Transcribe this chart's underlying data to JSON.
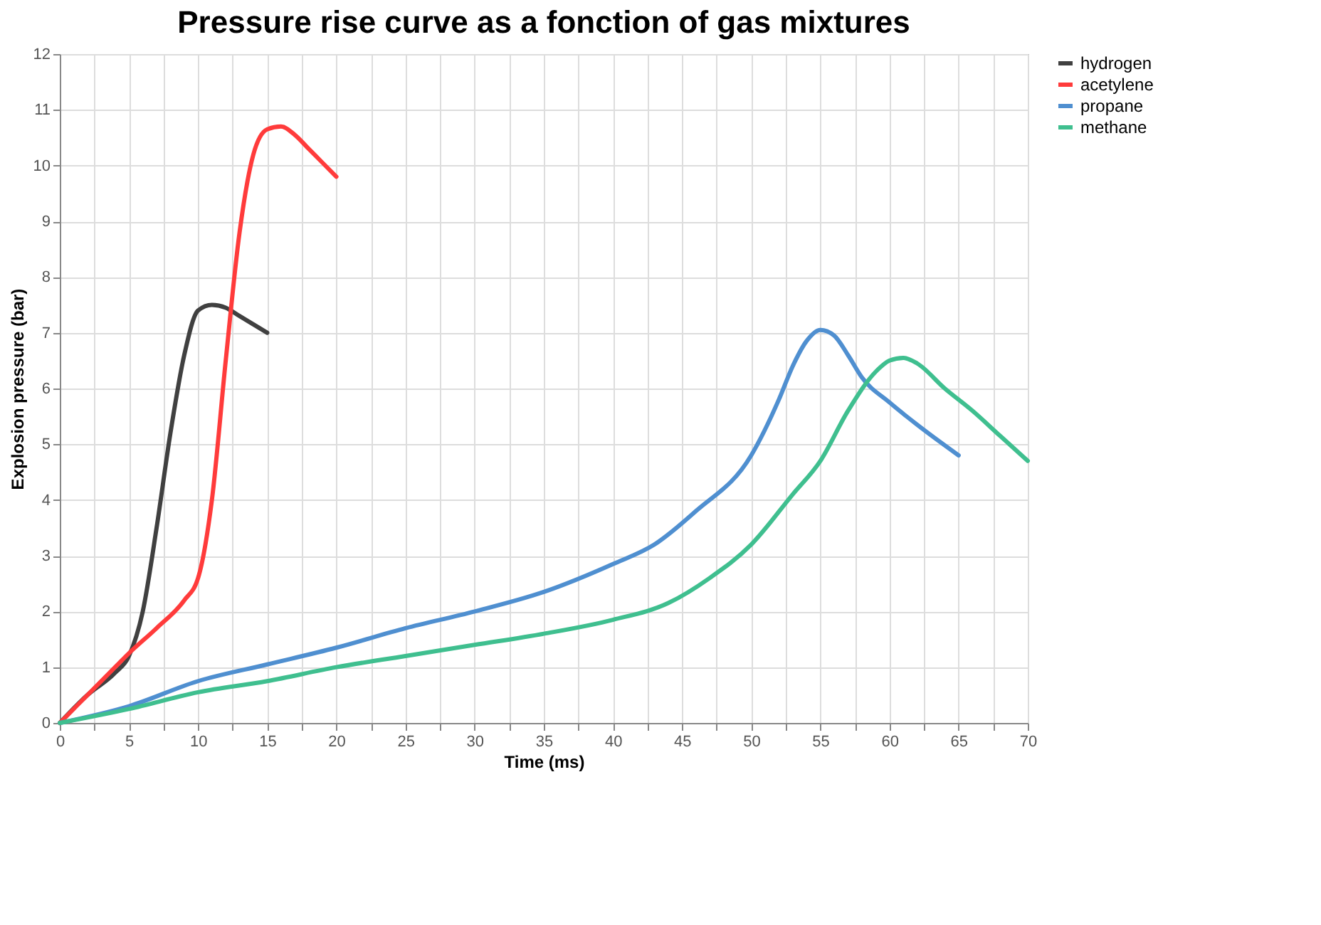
{
  "chart_data": {
    "type": "line",
    "title": "Pressure rise curve as a fonction of gas mixtures",
    "xlabel": "Time (ms)",
    "ylabel": "Explosion pressure (bar)",
    "xlim": [
      0,
      70
    ],
    "ylim": [
      0,
      12
    ],
    "xticks": [
      0,
      {
        "value": 2.5,
        "label": null
      },
      5,
      {
        "value": 7.5,
        "label": null
      },
      10,
      {
        "value": 12.5,
        "label": null
      },
      15,
      {
        "value": 17.5,
        "label": null
      },
      20,
      {
        "value": 22.5,
        "label": null
      },
      25,
      {
        "value": 27.5,
        "label": null
      },
      30,
      {
        "value": 32.5,
        "label": null
      },
      35,
      {
        "value": 37.5,
        "label": null
      },
      40,
      {
        "value": 42.5,
        "label": null
      },
      45,
      {
        "value": 47.5,
        "label": null
      },
      50,
      {
        "value": 52.5,
        "label": null
      },
      55,
      {
        "value": 57.5,
        "label": null
      },
      60,
      {
        "value": 62.5,
        "label": null
      },
      65,
      {
        "value": 67.5,
        "label": null
      },
      70
    ],
    "yticks": [
      0,
      1,
      2,
      3,
      4,
      5,
      6,
      7,
      8,
      9,
      10,
      11,
      12
    ],
    "grid": true,
    "legend": "right",
    "marker": "none",
    "line_style": "solid",
    "series": [
      {
        "name": "hydrogen",
        "color": "#404040",
        "x": [
          0,
          2,
          4,
          5,
          6,
          7,
          8,
          9,
          10,
          11,
          12,
          13,
          14,
          15
        ],
        "values": [
          0,
          0.5,
          0.9,
          1.2,
          2,
          3.5,
          5.2,
          6.6,
          7.4,
          7.5,
          7.45,
          7.3,
          7.15,
          7.0
        ]
      },
      {
        "name": "acetylene",
        "color": "#ff3b3b",
        "x": [
          0,
          2,
          4,
          5,
          7,
          9,
          10,
          11,
          12,
          13,
          14,
          15,
          16,
          17,
          18,
          19,
          20
        ],
        "values": [
          0,
          0.5,
          1.0,
          1.25,
          1.7,
          2.2,
          2.6,
          4.0,
          6.5,
          8.8,
          10.2,
          10.65,
          10.7,
          10.55,
          10.3,
          10.05,
          9.8
        ]
      },
      {
        "name": "propane",
        "color": "#4f8fd0",
        "x": [
          0,
          5,
          10,
          15,
          20,
          25,
          30,
          35,
          40,
          43,
          46,
          50,
          52,
          53,
          54,
          55,
          56,
          57,
          58,
          60,
          62,
          65
        ],
        "values": [
          0,
          0.3,
          0.75,
          1.05,
          1.35,
          1.7,
          2.0,
          2.35,
          2.85,
          3.2,
          3.8,
          4.8,
          5.8,
          6.4,
          6.85,
          7.05,
          6.95,
          6.6,
          6.2,
          5.75,
          5.35,
          4.8
        ]
      },
      {
        "name": "methane",
        "color": "#3fbf8f",
        "x": [
          0,
          5,
          10,
          15,
          20,
          25,
          30,
          35,
          40,
          44,
          47,
          50,
          53,
          55,
          57,
          59,
          60,
          61,
          62,
          64,
          66,
          68,
          70
        ],
        "values": [
          0,
          0.25,
          0.55,
          0.75,
          1.0,
          1.2,
          1.4,
          1.6,
          1.85,
          2.15,
          2.6,
          3.2,
          4.1,
          4.7,
          5.6,
          6.3,
          6.5,
          6.55,
          6.45,
          6.0,
          5.6,
          5.15,
          4.7
        ]
      }
    ]
  }
}
